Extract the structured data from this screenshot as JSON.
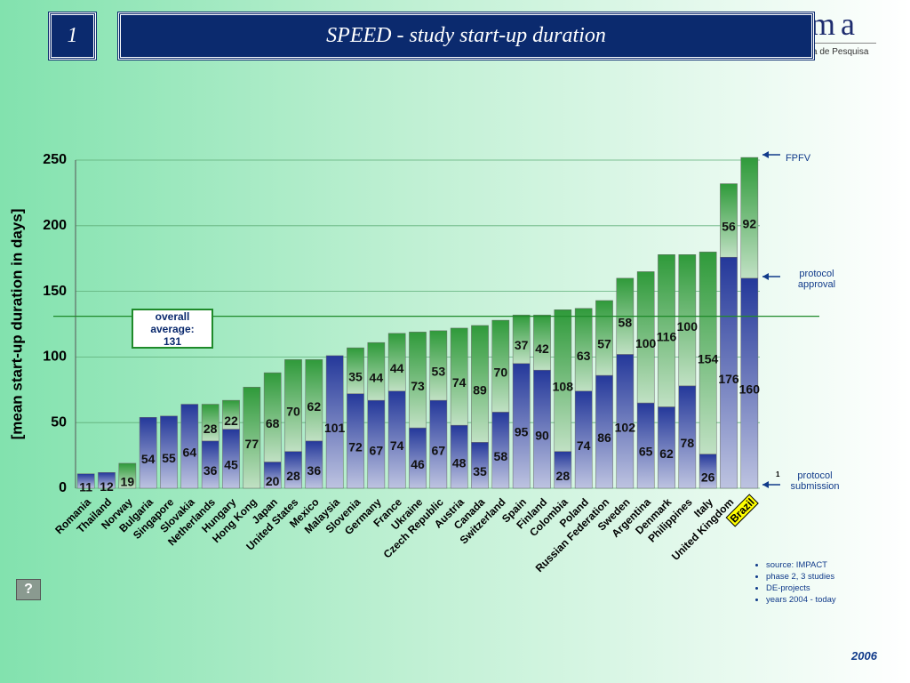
{
  "slide_number": "1",
  "logo": {
    "mark": "ma",
    "subtitle": "a de Pesquisa"
  },
  "chart_data": {
    "type": "stacked_bar",
    "title": "SPEED - study start-up duration",
    "y_label": "[mean start-up duration in days]",
    "categories": [
      "Romania",
      "Thailand",
      "Norway",
      "Bulgaria",
      "Singapore",
      "Slovakia",
      "Netherlands",
      "Hungary",
      "Hong Kong",
      "Japan",
      "United States",
      "Mexico",
      "Malaysia",
      "Slovenia",
      "Germany",
      "France",
      "Ukraine",
      "Czech Republic",
      "Austria",
      "Canada",
      "Switzerland",
      "Spain",
      "Finland",
      "Colombia",
      "Poland",
      "Russian Federation",
      "Sweden",
      "Argentina",
      "Denmark",
      "Philippines",
      "Italy",
      "United Kingdom",
      "Brazil"
    ],
    "series": [
      {
        "name": "protocol submission",
        "color": "#24389a",
        "values": [
          11,
          12,
          null,
          54,
          55,
          64,
          36,
          45,
          null,
          20,
          28,
          36,
          101,
          72,
          67,
          74,
          46,
          67,
          48,
          35,
          58,
          95,
          90,
          28,
          74,
          86,
          102,
          65,
          62,
          78,
          26,
          176,
          160
        ]
      },
      {
        "name": "protocol approval",
        "color": "#2f9a3a",
        "values": [
          null,
          null,
          19,
          null,
          null,
          null,
          28,
          22,
          77,
          68,
          70,
          62,
          null,
          35,
          44,
          44,
          73,
          53,
          74,
          89,
          70,
          37,
          42,
          108,
          63,
          57,
          58,
          100,
          116,
          100,
          154,
          56,
          92
        ]
      }
    ],
    "ylim": [
      0,
      250
    ],
    "yticks": [
      0,
      50,
      100,
      150,
      200,
      250
    ],
    "grid": true,
    "average": {
      "value": 131,
      "label": "overall average: 131"
    },
    "highlight_index": 32,
    "highlight_color": "#ffff00",
    "annotations": {
      "top": "FPFV",
      "footnote_mark": "1"
    },
    "notes": [
      "source: IMPACT",
      "phase 2, 3 studies",
      "DE-projects",
      "years 2004 - today"
    ],
    "year": "2006"
  }
}
